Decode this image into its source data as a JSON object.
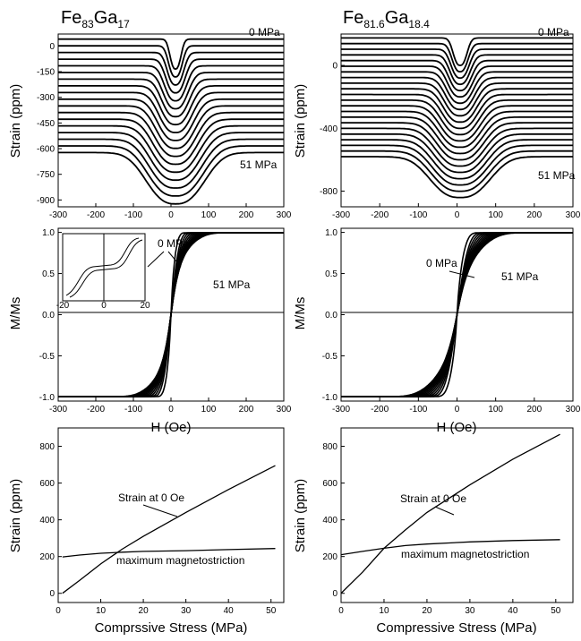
{
  "chart_data": [
    {
      "id": "p1",
      "type": "line",
      "title_base1": "Fe",
      "title_sub1": "83",
      "title_base2": "Ga",
      "title_sub2": "17",
      "xlabel": "",
      "ylabel": "Strain (ppm)",
      "xlim": [
        -300,
        300
      ],
      "ylim": [
        -940,
        70
      ],
      "xticks": [
        -300,
        -200,
        -100,
        0,
        100,
        200,
        300
      ],
      "yticks": [
        0,
        -150,
        -300,
        -450,
        -600,
        -750,
        -900
      ],
      "annotations": [
        {
          "text": "0 MPa"
        },
        {
          "text": "51 MPa"
        }
      ],
      "series_model": {
        "count": 18,
        "y0": 40,
        "y_step": -39,
        "dip_center": 12,
        "dip_first": 175,
        "dip_last": 300,
        "width_first": 18,
        "width_last": 95
      }
    },
    {
      "id": "p2",
      "type": "line",
      "title_base1": "Fe",
      "title_sub1": "81.6",
      "title_base2": "Ga",
      "title_sub2": "18.4",
      "xlabel": "",
      "ylabel": "Strain (ppm)",
      "xlim": [
        -300,
        300
      ],
      "ylim": [
        -900,
        200
      ],
      "xticks": [
        -300,
        -200,
        -100,
        0,
        100,
        200,
        300
      ],
      "yticks": [
        0,
        -400,
        -800
      ],
      "annotations": [
        {
          "text": "0 MPa"
        },
        {
          "text": "51 MPa"
        }
      ],
      "series_model": {
        "count": 22,
        "y0": 175,
        "y_step": -36,
        "dip_center": 8,
        "dip_first": 175,
        "dip_last": 260,
        "width_first": 22,
        "width_last": 95
      }
    },
    {
      "id": "p3",
      "type": "line",
      "xlabel": "H (Oe)",
      "ylabel": "M/Ms",
      "xlim": [
        -300,
        300
      ],
      "ylim": [
        -1.05,
        1.05
      ],
      "xticks": [
        -300,
        -200,
        -100,
        0,
        100,
        200,
        300
      ],
      "yticks": [
        1.0,
        0.5,
        0.0,
        -0.5,
        -1.0
      ],
      "annotations": [
        {
          "text": "0 MPa"
        },
        {
          "text": "51 MPa"
        }
      ],
      "series_model": {
        "count": 12,
        "sat_first": 38,
        "sat_last": 150,
        "knee_first": 0.0,
        "knee_last": 0.5
      },
      "inset": {
        "xlim": [
          -20,
          20
        ],
        "xticks": [
          -20,
          0,
          20
        ]
      }
    },
    {
      "id": "p4",
      "type": "line",
      "xlabel": "H (Oe)",
      "ylabel": "M/Ms",
      "xlim": [
        -300,
        300
      ],
      "ylim": [
        -1.05,
        1.05
      ],
      "xticks": [
        -300,
        -200,
        -100,
        0,
        100,
        200,
        300
      ],
      "yticks": [
        1.0,
        0.5,
        0.0,
        -0.5,
        -1.0
      ],
      "annotations": [
        {
          "text": "0 MPa"
        },
        {
          "text": "51 MPa"
        }
      ],
      "series_model": {
        "count": 12,
        "sat_first": 55,
        "sat_last": 175,
        "knee_first": 0.0,
        "knee_last": 0.35
      }
    },
    {
      "id": "p5",
      "type": "line",
      "xlabel": "Comprssive Stress (MPa)",
      "ylabel": "Strain (ppm)",
      "xlim": [
        0,
        53
      ],
      "ylim": [
        -50,
        900
      ],
      "xticks": [
        0,
        10,
        20,
        30,
        40,
        50
      ],
      "yticks": [
        0,
        200,
        400,
        600,
        800
      ],
      "series": [
        {
          "name": "Strain at 0 Oe",
          "x": [
            1,
            5,
            10,
            15,
            20,
            30,
            40,
            51
          ],
          "y": [
            0,
            70,
            160,
            240,
            310,
            440,
            565,
            695
          ]
        },
        {
          "name": "maximum magnetostriction",
          "x": [
            1,
            5,
            10,
            15,
            20,
            30,
            40,
            51
          ],
          "y": [
            198,
            208,
            218,
            224,
            228,
            232,
            238,
            244
          ]
        }
      ],
      "annotations": [
        {
          "text": "Strain at 0 Oe"
        },
        {
          "text": "maximum magnetostriction"
        }
      ]
    },
    {
      "id": "p6",
      "type": "line",
      "xlabel": "Compressive Stress (MPa)",
      "ylabel": "Strain (ppm)",
      "xlim": [
        0,
        54
      ],
      "ylim": [
        -50,
        900
      ],
      "xticks": [
        0,
        10,
        20,
        30,
        40,
        50
      ],
      "yticks": [
        0,
        200,
        400,
        600,
        800
      ],
      "series": [
        {
          "name": "Strain at 0 Oe",
          "x": [
            0,
            5,
            10,
            15,
            20,
            30,
            40,
            51
          ],
          "y": [
            0,
            115,
            245,
            345,
            440,
            590,
            730,
            865
          ]
        },
        {
          "name": "maximum magnetostriction",
          "x": [
            0,
            5,
            10,
            15,
            20,
            30,
            40,
            51
          ],
          "y": [
            210,
            228,
            245,
            260,
            268,
            280,
            287,
            292
          ]
        }
      ],
      "annotations": [
        {
          "text": "Strain at 0 Oe"
        },
        {
          "text": "maximum magnetostriction"
        }
      ]
    }
  ]
}
